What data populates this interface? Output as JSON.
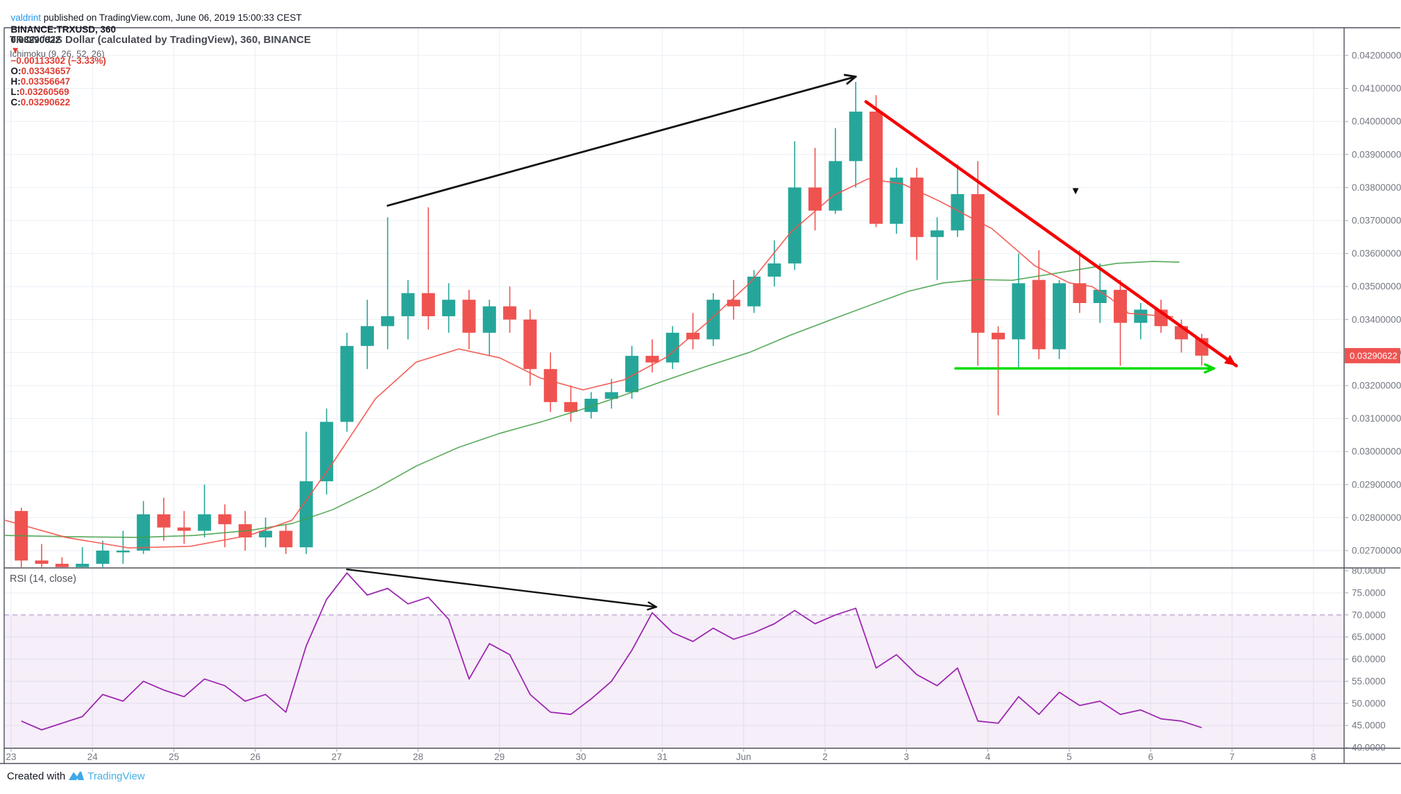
{
  "page": {
    "byline": {
      "user": "valdrint",
      "rest": " published on TradingView.com, June 06, 2019 15:00:33 CEST"
    },
    "quote": {
      "symbol": "BINANCE:TRXUSD, 360",
      "last": "0.03290622",
      "arrow": "▼",
      "change": "−0.00113302 (−3.33%)",
      "o_label": "O:",
      "o": "0.03343657",
      "h_label": "H:",
      "h": "0.03356647",
      "l_label": "L:",
      "l": "0.03260569",
      "c_label": "C:",
      "c": "0.03290622"
    },
    "footer": {
      "created_with": "Created with",
      "brand": "TradingView"
    }
  },
  "chart_data": {
    "type": "candlestick+rsi",
    "title": "TRON / US Dollar (calculated by TradingView), 360, BINANCE",
    "indicator_label": "Ichimoku (9, 26, 52, 26)",
    "rsi_label": "RSI (14, close)",
    "interval_minutes": 360,
    "x_tick_labels": [
      "23",
      "24",
      "25",
      "26",
      "27",
      "28",
      "29",
      "30",
      "31",
      "Jun",
      "2",
      "3",
      "4",
      "5",
      "6",
      "7",
      "8"
    ],
    "price_axis_ticks": [
      0.042,
      0.041,
      0.04,
      0.039,
      0.038,
      0.037,
      0.036,
      0.035,
      0.034,
      0.033,
      0.032,
      0.031,
      0.03,
      0.029,
      0.028,
      0.027
    ],
    "rsi_axis_ticks": [
      80,
      75,
      70,
      65,
      60,
      55,
      50,
      45,
      40
    ],
    "overbought_level": 70,
    "last_price": 0.03290622,
    "last_price_label": "0.03290622",
    "candles": [
      [
        0.0282,
        0.0283,
        0.0265,
        0.0267
      ],
      [
        0.0267,
        0.0272,
        0.0265,
        0.0266
      ],
      [
        0.0266,
        0.0268,
        0.0265,
        0.0265
      ],
      [
        0.0265,
        0.0271,
        0.0265,
        0.0266
      ],
      [
        0.0266,
        0.0273,
        0.0265,
        0.027
      ],
      [
        0.027,
        0.0276,
        0.0266,
        0.027
      ],
      [
        0.027,
        0.0285,
        0.0269,
        0.0281
      ],
      [
        0.0281,
        0.0286,
        0.0273,
        0.0277
      ],
      [
        0.0277,
        0.0282,
        0.0272,
        0.0276
      ],
      [
        0.0276,
        0.029,
        0.0274,
        0.0281
      ],
      [
        0.0281,
        0.0284,
        0.0271,
        0.0278
      ],
      [
        0.0278,
        0.0282,
        0.027,
        0.0274
      ],
      [
        0.0274,
        0.028,
        0.0271,
        0.0276
      ],
      [
        0.0276,
        0.0278,
        0.0269,
        0.0271
      ],
      [
        0.0271,
        0.0306,
        0.0269,
        0.0291
      ],
      [
        0.0291,
        0.0313,
        0.0287,
        0.0309
      ],
      [
        0.0309,
        0.0336,
        0.0306,
        0.0332
      ],
      [
        0.0332,
        0.0346,
        0.0325,
        0.0338
      ],
      [
        0.0338,
        0.0371,
        0.0331,
        0.0341
      ],
      [
        0.0341,
        0.0352,
        0.0334,
        0.0348
      ],
      [
        0.0348,
        0.0374,
        0.0337,
        0.0341
      ],
      [
        0.0341,
        0.0351,
        0.0336,
        0.0346
      ],
      [
        0.0346,
        0.0349,
        0.0331,
        0.0336
      ],
      [
        0.0336,
        0.0346,
        0.0329,
        0.0344
      ],
      [
        0.0344,
        0.035,
        0.0336,
        0.034
      ],
      [
        0.034,
        0.0343,
        0.032,
        0.0325
      ],
      [
        0.0325,
        0.033,
        0.0312,
        0.0315
      ],
      [
        0.0315,
        0.032,
        0.0309,
        0.0312
      ],
      [
        0.0312,
        0.0318,
        0.031,
        0.0316
      ],
      [
        0.0316,
        0.0322,
        0.0313,
        0.0318
      ],
      [
        0.0318,
        0.0332,
        0.0316,
        0.0329
      ],
      [
        0.0329,
        0.0334,
        0.0324,
        0.0327
      ],
      [
        0.0327,
        0.0338,
        0.0325,
        0.0336
      ],
      [
        0.0336,
        0.0342,
        0.0331,
        0.0334
      ],
      [
        0.0334,
        0.0348,
        0.0332,
        0.0346
      ],
      [
        0.0346,
        0.0352,
        0.034,
        0.0344
      ],
      [
        0.0344,
        0.0355,
        0.0342,
        0.0353
      ],
      [
        0.0353,
        0.0364,
        0.035,
        0.0357
      ],
      [
        0.0357,
        0.0394,
        0.0355,
        0.038
      ],
      [
        0.038,
        0.0392,
        0.0367,
        0.0373
      ],
      [
        0.0373,
        0.0398,
        0.0372,
        0.0388
      ],
      [
        0.0388,
        0.0412,
        0.038,
        0.0403
      ],
      [
        0.0403,
        0.0408,
        0.0368,
        0.0369
      ],
      [
        0.0369,
        0.0386,
        0.0366,
        0.0383
      ],
      [
        0.0383,
        0.0386,
        0.0358,
        0.0365
      ],
      [
        0.0365,
        0.0371,
        0.0352,
        0.0367
      ],
      [
        0.0367,
        0.0387,
        0.0365,
        0.0378
      ],
      [
        0.0378,
        0.0388,
        0.0326,
        0.0336
      ],
      [
        0.0336,
        0.0338,
        0.0311,
        0.0334
      ],
      [
        0.0334,
        0.036,
        0.0325,
        0.0351
      ],
      [
        0.0352,
        0.0361,
        0.0328,
        0.0331
      ],
      [
        0.0331,
        0.0352,
        0.0328,
        0.0351
      ],
      [
        0.0351,
        0.0361,
        0.0342,
        0.0345
      ],
      [
        0.0345,
        0.0357,
        0.0339,
        0.0349
      ],
      [
        0.0349,
        0.0352,
        0.0326,
        0.0339
      ],
      [
        0.0339,
        0.0345,
        0.0334,
        0.0343
      ],
      [
        0.0343,
        0.0346,
        0.0336,
        0.0338
      ],
      [
        0.0338,
        0.034,
        0.033,
        0.0334
      ],
      [
        0.03343657,
        0.03356647,
        0.03260569,
        0.03290622
      ]
    ],
    "rsi": [
      46,
      44,
      45.5,
      47,
      52,
      50.5,
      55,
      53,
      51.5,
      55.5,
      54,
      50.5,
      52,
      48,
      63,
      73.5,
      79.5,
      74.5,
      76,
      72.5,
      74,
      69,
      55.5,
      63.5,
      61,
      52,
      48,
      47.5,
      51,
      55,
      62,
      70.5,
      66,
      64,
      67,
      64.5,
      66,
      68,
      71,
      68,
      70,
      71.5,
      58,
      61,
      56.5,
      54,
      58,
      46,
      45.5,
      51.5,
      47.5,
      52.5,
      49.5,
      50.5,
      47.5,
      48.5,
      46.5,
      46,
      44.5
    ],
    "ichimoku_conversion_line": [
      [
        -0.8,
        0.02792
      ],
      [
        2.2,
        0.0274
      ],
      [
        5.3,
        0.02708
      ],
      [
        8.3,
        0.02713
      ],
      [
        11.2,
        0.02746
      ],
      [
        13.3,
        0.02792
      ],
      [
        15.3,
        0.02965
      ],
      [
        17.4,
        0.0316
      ],
      [
        19.4,
        0.03271
      ],
      [
        21.5,
        0.03311
      ],
      [
        23.5,
        0.03284
      ],
      [
        25.5,
        0.03223
      ],
      [
        27.6,
        0.03187
      ],
      [
        29.6,
        0.03217
      ],
      [
        31.7,
        0.03286
      ],
      [
        33.7,
        0.03391
      ],
      [
        35.8,
        0.03511
      ],
      [
        37.8,
        0.03664
      ],
      [
        39.9,
        0.03776
      ],
      [
        41.6,
        0.03826
      ],
      [
        43.3,
        0.03811
      ],
      [
        45.1,
        0.03759
      ],
      [
        47.7,
        0.03675
      ],
      [
        49.8,
        0.03563
      ],
      [
        51.5,
        0.03511
      ],
      [
        52.6,
        0.035
      ],
      [
        53.5,
        0.03465
      ],
      [
        54.4,
        0.03419
      ],
      [
        56.6,
        0.03408
      ]
    ],
    "ichimoku_base_line": [
      [
        -0.8,
        0.02746
      ],
      [
        2.4,
        0.02742
      ],
      [
        5.8,
        0.0274
      ],
      [
        8.5,
        0.02746
      ],
      [
        11.2,
        0.02761
      ],
      [
        13.3,
        0.02782
      ],
      [
        15.3,
        0.02824
      ],
      [
        17.4,
        0.02887
      ],
      [
        19.4,
        0.02956
      ],
      [
        21.5,
        0.03013
      ],
      [
        23.5,
        0.03055
      ],
      [
        25.6,
        0.03091
      ],
      [
        27.6,
        0.03129
      ],
      [
        29.6,
        0.03171
      ],
      [
        31.7,
        0.03217
      ],
      [
        33.7,
        0.03259
      ],
      [
        35.8,
        0.03301
      ],
      [
        37.8,
        0.03353
      ],
      [
        39.9,
        0.03402
      ],
      [
        41.9,
        0.03448
      ],
      [
        43.6,
        0.03486
      ],
      [
        45.3,
        0.03511
      ],
      [
        47.0,
        0.03521
      ],
      [
        48.7,
        0.03519
      ],
      [
        50.4,
        0.03536
      ],
      [
        52.1,
        0.03553
      ],
      [
        53.8,
        0.0357
      ],
      [
        55.6,
        0.03576
      ],
      [
        56.9,
        0.03574
      ]
    ],
    "annotations": {
      "up_trend_arrow": {
        "from": [
          18,
          0.03745
        ],
        "to": [
          41,
          0.04136
        ],
        "color": "#111111",
        "width": 2.8,
        "head": "open",
        "head_len": 16
      },
      "down_trend_arrow": {
        "from": [
          41.5,
          0.0406
        ],
        "to": [
          59.7,
          0.0326
        ],
        "color": "#f50000",
        "width": 4.5,
        "head": "filled",
        "head_len": 18
      },
      "support_arrow": {
        "from": [
          45.9,
          0.03252
        ],
        "to": [
          58.6,
          0.03252
        ],
        "color": "#00dc00",
        "width": 3.4,
        "head": "open",
        "head_len": 14
      },
      "rsi_arrow": {
        "from": [
          16,
          80.3
        ],
        "to": [
          31.2,
          71.8
        ],
        "color": "#111111",
        "width": 2.4,
        "head": "open",
        "head_len": 13
      },
      "down_marker": {
        "i": 51.8,
        "price": 0.0378,
        "glyph": "▼",
        "color": "#000000"
      }
    },
    "colors": {
      "up": "#26a69a",
      "down": "#ef5350",
      "grid": "#e9eef5",
      "axis_text": "#737780",
      "border": "#4d505a",
      "tick": "#9aa0ab",
      "conversion_line": "#f2544c",
      "base_line": "#43a047",
      "rsi_line": "#9c27b0",
      "band_fill": "rgba(156,66,176,0.09)",
      "band_edge": "#b6a0cf",
      "badge_bg": "#ef5350",
      "badge_text": "#ffffff"
    }
  }
}
